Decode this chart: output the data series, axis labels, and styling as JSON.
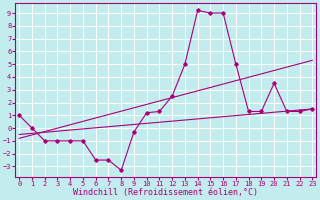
{
  "xlabel": "Windchill (Refroidissement éolien,°C)",
  "bg_color": "#c2ecee",
  "grid_color": "#ffffff",
  "line_color": "#aa0077",
  "x_ticks": [
    0,
    1,
    2,
    3,
    4,
    5,
    6,
    7,
    8,
    9,
    10,
    11,
    12,
    13,
    14,
    15,
    16,
    17,
    18,
    19,
    20,
    21,
    22,
    23
  ],
  "y_ticks": [
    -3,
    -2,
    -1,
    0,
    1,
    2,
    3,
    4,
    5,
    6,
    7,
    8,
    9
  ],
  "ylim": [
    -3.8,
    9.8
  ],
  "xlim": [
    -0.3,
    23.3
  ],
  "line1_x": [
    0,
    1,
    2,
    3,
    4,
    5,
    6,
    7,
    8,
    9,
    10,
    11,
    12,
    13,
    14,
    15,
    16,
    17,
    18,
    19,
    20,
    21,
    22,
    23
  ],
  "line1_y": [
    1.0,
    0.0,
    -1.0,
    -1.0,
    -1.0,
    -1.0,
    -2.5,
    -2.5,
    -3.3,
    -0.3,
    1.2,
    1.3,
    2.5,
    5.0,
    9.2,
    9.0,
    9.0,
    5.0,
    1.3,
    1.3,
    3.5,
    1.3,
    1.3,
    1.5
  ],
  "line2_x": [
    0,
    23
  ],
  "line2_y": [
    -0.5,
    1.5
  ],
  "line3_x": [
    0,
    23
  ],
  "line3_y": [
    -0.8,
    5.3
  ],
  "tick_fontsize": 5.0,
  "label_fontsize": 6.0
}
